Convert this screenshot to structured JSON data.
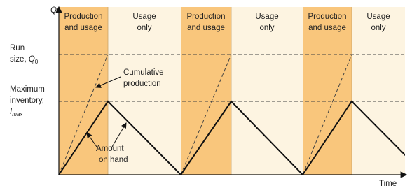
{
  "axes": {
    "y_label": "Q",
    "x_label": "Time"
  },
  "phases": [
    {
      "production": [
        "Production",
        "and usage"
      ],
      "usage": [
        "Usage",
        "only"
      ]
    },
    {
      "production": [
        "Production",
        "and usage"
      ],
      "usage": [
        "Usage",
        "only"
      ]
    },
    {
      "production": [
        "Production",
        "and usage"
      ],
      "usage": [
        "Usage",
        "only"
      ]
    }
  ],
  "levels": {
    "run_size": {
      "lines": [
        "Run",
        "size, "
      ],
      "symbol": "Q",
      "subscript": "0"
    },
    "max_inventory": {
      "lines": [
        "Maximum",
        "inventory,"
      ],
      "symbol": "I",
      "subscript": "max"
    }
  },
  "annotations": {
    "cumulative": [
      "Cumulative",
      "production"
    ],
    "on_hand": [
      "Amount",
      "on hand"
    ]
  }
}
